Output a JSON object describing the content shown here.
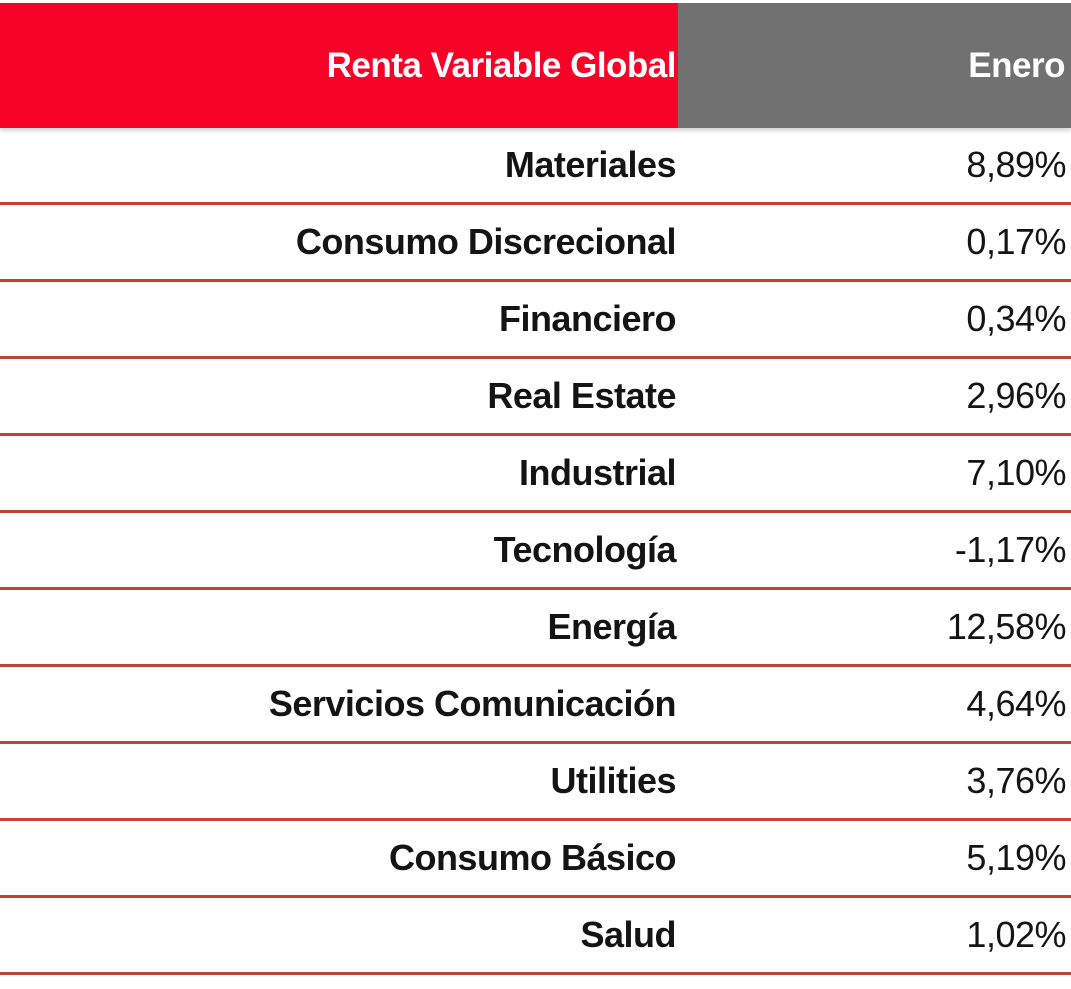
{
  "header": {
    "title": "Renta Variable Global",
    "period": "Enero"
  },
  "rows": [
    {
      "sector": "Materiales",
      "value": "8,89%"
    },
    {
      "sector": "Consumo Discrecional",
      "value": "0,17%"
    },
    {
      "sector": "Financiero",
      "value": "0,34%"
    },
    {
      "sector": "Real Estate",
      "value": "2,96%"
    },
    {
      "sector": "Industrial",
      "value": "7,10%"
    },
    {
      "sector": "Tecnología",
      "value": "-1,17%"
    },
    {
      "sector": "Energía",
      "value": "12,58%"
    },
    {
      "sector": "Servicios Comunicación",
      "value": "4,64%"
    },
    {
      "sector": "Utilities",
      "value": "3,76%"
    },
    {
      "sector": "Consumo Básico",
      "value": "5,19%"
    },
    {
      "sector": "Salud",
      "value": "1,02%"
    }
  ],
  "colors": {
    "header_red": "#F80328",
    "header_gray": "#717171",
    "separator_red": "#BE4433",
    "header_text": "#FFFFFF",
    "body_text": "#141414",
    "background": "#FFFFFF"
  },
  "chart_data": {
    "type": "table",
    "title": "Renta Variable Global",
    "columns": [
      "Renta Variable Global",
      "Enero"
    ],
    "categories": [
      "Materiales",
      "Consumo Discrecional",
      "Financiero",
      "Real Estate",
      "Industrial",
      "Tecnología",
      "Energía",
      "Servicios Comunicación",
      "Utilities",
      "Consumo Básico",
      "Salud"
    ],
    "values": [
      8.89,
      0.17,
      0.34,
      2.96,
      7.1,
      -1.17,
      12.58,
      4.64,
      3.76,
      5.19,
      1.02
    ],
    "value_unit": "%",
    "value_format": "comma_decimal",
    "layout": "two-column table, sector names right-aligned in left column, monthly % return right-aligned in right column, red separator rule under each row"
  }
}
